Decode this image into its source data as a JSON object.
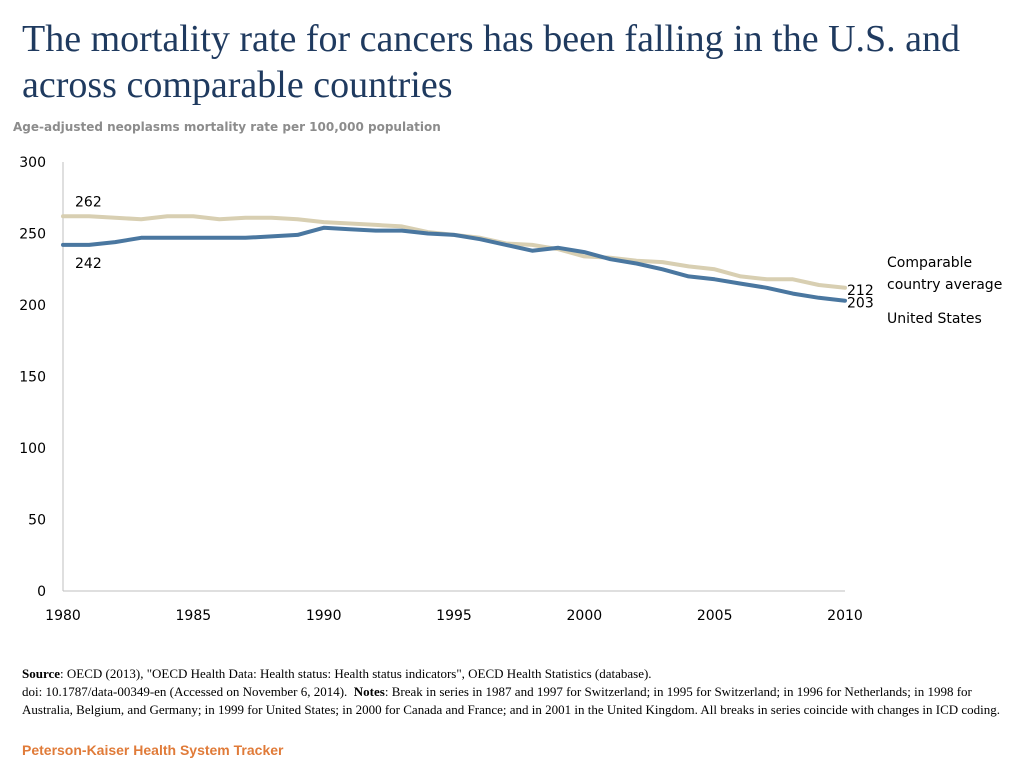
{
  "title": "The mortality rate for cancers has been falling in the U.S. and across comparable countries",
  "subtitle": "Age-adjusted neoplasms mortality rate per 100,000 population",
  "colors": {
    "us": "#4a77a0",
    "comparable": "#d8cfb2",
    "title": "#1f3a5f",
    "brand": "#e07b39"
  },
  "chart_data": {
    "type": "line",
    "title": "The mortality rate for cancers has been falling in the U.S. and across comparable countries",
    "ylabel": "Age-adjusted neoplasms mortality rate per 100,000 population",
    "xlabel": "",
    "ylim": [
      0,
      300
    ],
    "xlim": [
      1980,
      2010
    ],
    "yticks": [
      "0",
      "50",
      "100",
      "150",
      "200",
      "250",
      "300"
    ],
    "xticks": [
      "1980",
      "1985",
      "1990",
      "1995",
      "2000",
      "2005",
      "2010"
    ],
    "x": [
      1980,
      1981,
      1982,
      1983,
      1984,
      1985,
      1986,
      1987,
      1988,
      1989,
      1990,
      1991,
      1992,
      1993,
      1994,
      1995,
      1996,
      1997,
      1998,
      1999,
      2000,
      2001,
      2002,
      2003,
      2004,
      2005,
      2006,
      2007,
      2008,
      2009,
      2010
    ],
    "series": [
      {
        "name": "Comparable country average",
        "color": "#d8cfb2",
        "values": [
          262,
          262,
          261,
          260,
          262,
          262,
          260,
          261,
          261,
          260,
          258,
          257,
          256,
          255,
          251,
          249,
          247,
          243,
          242,
          239,
          234,
          233,
          231,
          230,
          227,
          225,
          220,
          218,
          218,
          214,
          212
        ],
        "start_label": "262",
        "end_label": "212"
      },
      {
        "name": "United States",
        "color": "#4a77a0",
        "values": [
          242,
          242,
          244,
          247,
          247,
          247,
          247,
          247,
          248,
          249,
          254,
          253,
          252,
          252,
          250,
          249,
          246,
          242,
          238,
          240,
          237,
          232,
          229,
          225,
          220,
          218,
          215,
          212,
          208,
          205,
          203
        ],
        "start_label": "242",
        "end_label": "203"
      }
    ],
    "legend": [
      "Comparable country average",
      "United States"
    ]
  },
  "legend": {
    "comparable": "Comparable country average",
    "us": "United States"
  },
  "footer": {
    "source_label": "Source",
    "source_text": ": OECD (2013), \"OECD Health Data: Health status: Health status indicators\", OECD Health Statistics (database).",
    "doi_text": "doi: 10.1787/data-00349-en (Accessed on November 6, 2014).",
    "notes_label": "Notes",
    "notes_text": ": Break in series in 1987 and 1997 for Switzerland;  in 1995 for Switzerland; in 1996 for Netherlands; in 1998 for Australia, Belgium, and Germany; in 1999 for United States;  in 2000 for Canada and France; and in 2001 in the United Kingdom. All breaks in series coincide with  changes in ICD coding."
  },
  "brand": "Peterson-Kaiser Health System Tracker"
}
